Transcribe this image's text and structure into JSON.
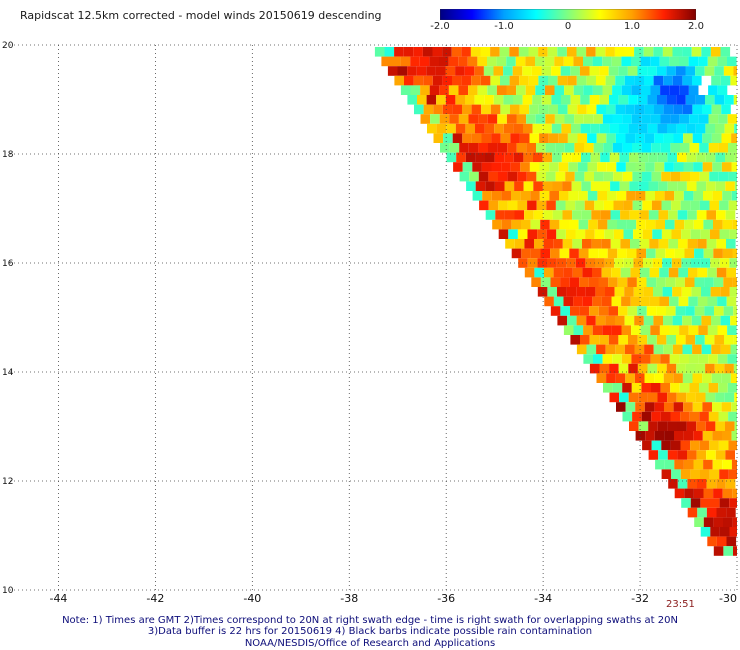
{
  "title": "Rapidscat 12.5km corrected - model winds 20150619 descending",
  "colorbar": {
    "min": -2.0,
    "max": 2.0,
    "tick_labels": [
      "-2.0",
      "-1.0",
      "0",
      "1.0",
      "2.0"
    ],
    "tick_values": [
      -2.0,
      -1.0,
      0,
      1.0,
      2.0
    ],
    "colors": [
      "#000080",
      "#0000ff",
      "#00a0ff",
      "#00ffff",
      "#80ff80",
      "#ffff00",
      "#ffa000",
      "#ff2000",
      "#800000"
    ]
  },
  "map": {
    "lon_range": [
      -45,
      -30
    ],
    "lat_range": [
      10,
      20
    ],
    "x_tick_labels": [
      "-44",
      "-42",
      "-40",
      "-38",
      "-36",
      "-34",
      "-32",
      "-30"
    ],
    "x_tick_values": [
      -44,
      -42,
      -40,
      -38,
      -36,
      -34,
      -32,
      -30
    ],
    "y_tick_labels": [
      "10",
      "12",
      "14",
      "16",
      "18",
      "20"
    ],
    "y_tick_values": [
      10,
      12,
      14,
      16,
      18,
      20
    ],
    "grid": "dotted",
    "swath_edge": [
      [
        -37.5,
        20
      ],
      [
        -30.4,
        10.7
      ]
    ],
    "time_label": "23:51",
    "hotspots": [
      {
        "lon": -31.6,
        "lat": 13.0,
        "value": 2.0
      },
      {
        "lon": -35.2,
        "lat": 18.0,
        "value": 1.8
      },
      {
        "lon": -36.3,
        "lat": 19.9,
        "value": 1.8
      },
      {
        "lon": -33.5,
        "lat": 15.5,
        "value": 1.6
      },
      {
        "lon": -31.4,
        "lat": 19.2,
        "value": -1.7
      },
      {
        "lon": -32.2,
        "lat": 18.6,
        "value": -0.9
      },
      {
        "lon": -30.3,
        "lat": 11.4,
        "value": 1.9
      }
    ]
  },
  "notes": {
    "line1": "Note: 1) Times are GMT 2)Times correspond to 20N at right swath edge - time is right swath for overlapping swaths at 20N",
    "line2": "3)Data buffer is 22 hrs for 20150619 4) Black barbs indicate possible rain contamination",
    "credit": "NOAA/NESDIS/Office of Research and Applications"
  }
}
